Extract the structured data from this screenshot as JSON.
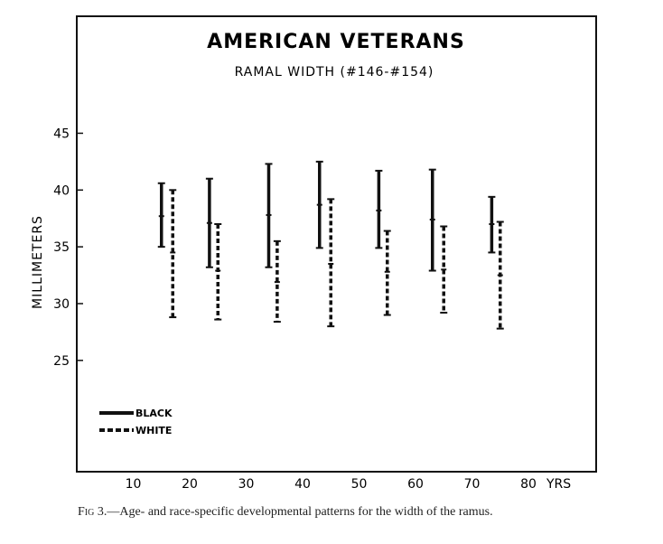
{
  "chart_data": {
    "type": "range-bar",
    "title": "AMERICAN VETERANS",
    "subtitle": "RAMAL WIDTH (#146-#154)",
    "ylabel": "MILLIMETERS",
    "xlabel": "YRS",
    "x_ticks": [
      10,
      20,
      30,
      40,
      50,
      60,
      70,
      80
    ],
    "y_ticks": [
      25,
      30,
      35,
      40,
      45
    ],
    "xlim": [
      0,
      92
    ],
    "ylim": [
      15.2,
      55.3
    ],
    "grid": false,
    "legend_placement": "bottom-left",
    "series": [
      {
        "name": "BLACK",
        "style": "solid",
        "x": [
          15,
          23.5,
          34,
          43,
          53.5,
          63,
          73.5
        ],
        "max": [
          40.6,
          41.0,
          42.3,
          42.5,
          41.7,
          41.8,
          39.4
        ],
        "mean": [
          37.7,
          37.1,
          37.8,
          38.7,
          38.2,
          37.4,
          37.0
        ],
        "min": [
          35.0,
          33.2,
          33.2,
          34.9,
          34.9,
          32.9,
          34.5
        ]
      },
      {
        "name": "WHITE",
        "style": "dashed",
        "x": [
          17,
          25,
          35.5,
          45,
          55,
          65,
          75
        ],
        "max": [
          40.0,
          37.0,
          35.5,
          39.2,
          36.4,
          36.8,
          37.2
        ],
        "mean": [
          34.5,
          32.9,
          31.9,
          33.5,
          32.8,
          33.0,
          32.5
        ],
        "min": [
          28.8,
          28.6,
          28.4,
          28.0,
          29.0,
          29.2,
          27.8
        ]
      }
    ]
  },
  "caption": {
    "label": "Fig 3.",
    "text": "—Age- and race-specific developmental patterns for the width of the ramus."
  }
}
